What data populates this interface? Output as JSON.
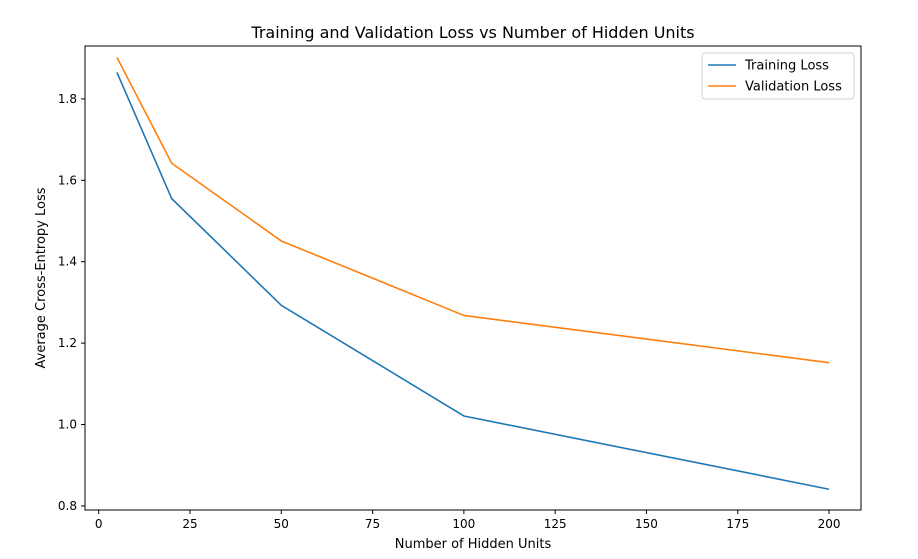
{
  "chart_data": {
    "type": "line",
    "title": "Training and Validation Loss vs Number of Hidden Units",
    "xlabel": "Number of Hidden Units",
    "ylabel": "Average Cross-Entropy Loss",
    "xlim": [
      -3.75,
      208.75
    ],
    "ylim": [
      0.79,
      1.93
    ],
    "xticks": [
      0,
      25,
      50,
      75,
      100,
      125,
      150,
      175,
      200
    ],
    "yticks": [
      0.8,
      1.0,
      1.2,
      1.4,
      1.6,
      1.8
    ],
    "xtick_labels": [
      "0",
      "25",
      "50",
      "75",
      "100",
      "125",
      "150",
      "175",
      "200"
    ],
    "ytick_labels": [
      "0.8",
      "1.0",
      "1.2",
      "1.4",
      "1.6",
      "1.8"
    ],
    "grid": false,
    "legend_position": "top-right",
    "x": [
      5,
      20,
      50,
      100,
      200
    ],
    "series": [
      {
        "name": "Training Loss",
        "color": "#1f77b4",
        "values": [
          1.865,
          1.555,
          1.293,
          1.021,
          0.841
        ]
      },
      {
        "name": "Validation Loss",
        "color": "#ff7f0e",
        "values": [
          1.902,
          1.642,
          1.451,
          1.268,
          1.152
        ]
      }
    ]
  }
}
